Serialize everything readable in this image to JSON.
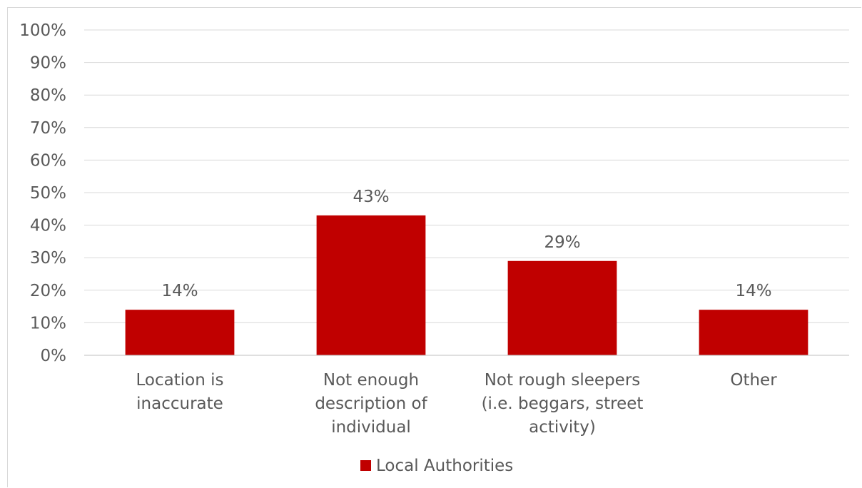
{
  "chart_data": {
    "type": "bar",
    "categories": [
      [
        "Location is",
        "inaccurate"
      ],
      [
        "Not enough",
        "description of",
        "individual"
      ],
      [
        "Not rough sleepers",
        "(i.e. beggars, street",
        "activity)"
      ],
      [
        "Other"
      ]
    ],
    "series": [
      {
        "name": "Local Authorities",
        "values": [
          14,
          43,
          29,
          14
        ],
        "labels": [
          "14%",
          "43%",
          "29%",
          "14%"
        ],
        "color": "#c00000"
      }
    ],
    "y_ticks": [
      "0%",
      "10%",
      "20%",
      "30%",
      "40%",
      "50%",
      "60%",
      "70%",
      "80%",
      "90%",
      "100%"
    ],
    "ylim": [
      0,
      100
    ],
    "grid": true,
    "legend_position": "bottom"
  }
}
